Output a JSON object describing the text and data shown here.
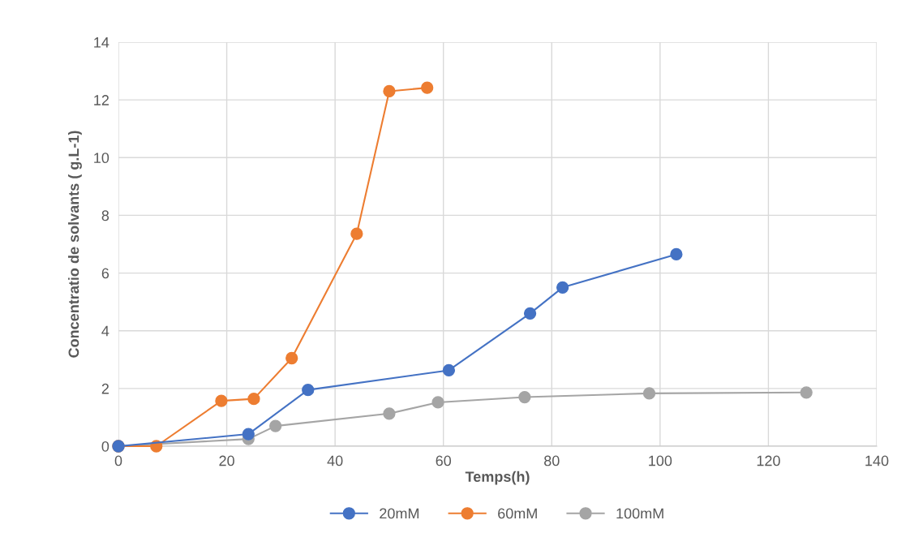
{
  "chart_data": {
    "type": "line",
    "xlabel": "Temps(h)",
    "ylabel": "Concentratio de solvants ( g.L-1)",
    "xlim": [
      0,
      140
    ],
    "xticks": [
      0,
      20,
      40,
      60,
      80,
      100,
      120,
      140
    ],
    "ylim": [
      0,
      14
    ],
    "yticks": [
      0,
      2,
      4,
      6,
      8,
      10,
      12,
      14
    ],
    "grid": true,
    "legend": "bottom",
    "marker": "circle",
    "line_style": "solid",
    "series": [
      {
        "name": "20mM",
        "color": "#4472c4",
        "x": [
          0,
          24,
          35,
          61,
          76,
          82,
          103
        ],
        "values": [
          0,
          0.42,
          1.95,
          2.63,
          4.6,
          5.5,
          6.65
        ]
      },
      {
        "name": "60mM",
        "color": "#ed7d31",
        "x": [
          0,
          7,
          19,
          25,
          32,
          44,
          50,
          57
        ],
        "values": [
          0,
          0,
          1.57,
          1.64,
          3.05,
          7.36,
          12.3,
          12.42
        ]
      },
      {
        "name": "100mM",
        "color": "#a5a5a5",
        "x": [
          0,
          24,
          29,
          50,
          59,
          75,
          98,
          127
        ],
        "values": [
          0,
          0.25,
          0.7,
          1.13,
          1.52,
          1.7,
          1.83,
          1.86
        ]
      }
    ]
  }
}
